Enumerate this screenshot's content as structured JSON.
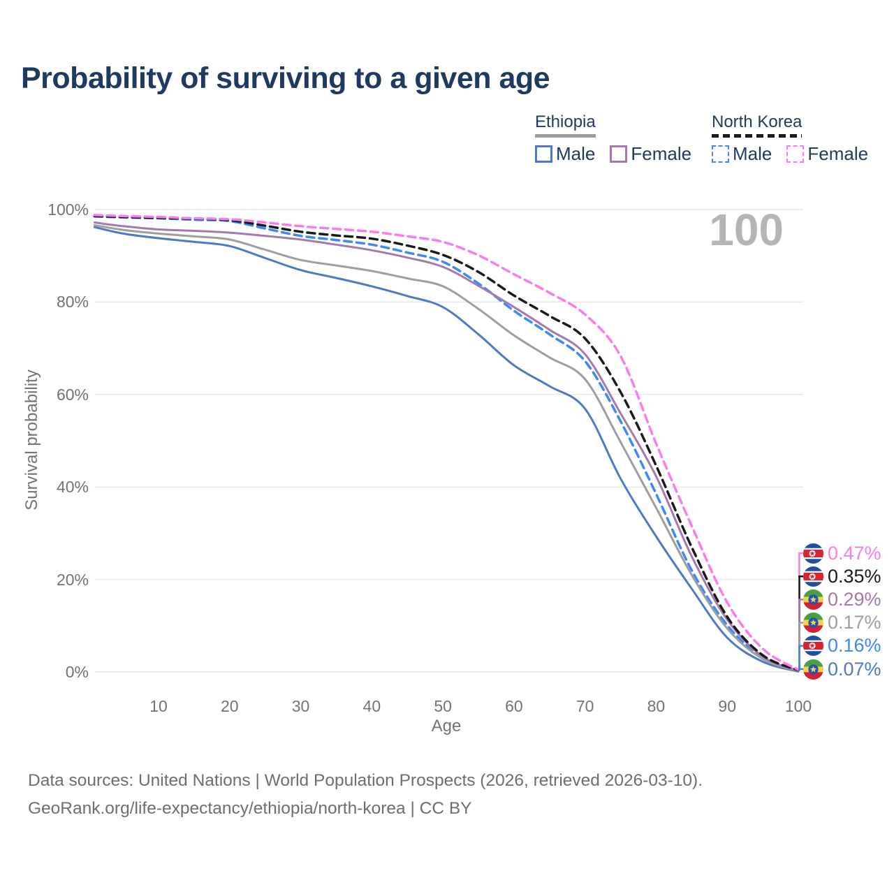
{
  "title": "Probability of surviving to a given age",
  "watermark_age": "100",
  "axes": {
    "ylabel": "Survival probability",
    "xlabel": "Age",
    "yticks": [
      {
        "value": 0,
        "label": "0%"
      },
      {
        "value": 20,
        "label": "20%"
      },
      {
        "value": 40,
        "label": "40%"
      },
      {
        "value": 60,
        "label": "60%"
      },
      {
        "value": 80,
        "label": "80%"
      },
      {
        "value": 100,
        "label": "100%"
      }
    ],
    "xticks": [
      {
        "value": 10,
        "label": "10"
      },
      {
        "value": 20,
        "label": "20"
      },
      {
        "value": 30,
        "label": "30"
      },
      {
        "value": 40,
        "label": "40"
      },
      {
        "value": 50,
        "label": "50"
      },
      {
        "value": 60,
        "label": "60"
      },
      {
        "value": 70,
        "label": "70"
      },
      {
        "value": 80,
        "label": "80"
      },
      {
        "value": 90,
        "label": "90"
      },
      {
        "value": 100,
        "label": "100"
      }
    ]
  },
  "legend": {
    "groups": [
      {
        "title": "Ethiopia",
        "line_style": "solid",
        "line_color": "#9e9e9e",
        "items": [
          {
            "label": "Male",
            "color": "#4d79c7",
            "dashed": false
          },
          {
            "label": "Female",
            "color": "#a678b0",
            "dashed": false
          }
        ]
      },
      {
        "title": "North Korea",
        "line_style": "dashed",
        "line_color": "#1a1a1a",
        "items": [
          {
            "label": "Male",
            "color": "#3d8af7",
            "dashed": true
          },
          {
            "label": "Female",
            "color": "#fb7ce8",
            "dashed": true
          }
        ]
      }
    ]
  },
  "chart_data": {
    "type": "line",
    "title": "Probability of surviving to a given age",
    "xlabel": "Age",
    "ylabel": "Survival probability",
    "xlim": [
      1,
      100
    ],
    "ylim": [
      0,
      100
    ],
    "grid": "horizontal",
    "legend_position": "top-right",
    "x": [
      1,
      5,
      10,
      15,
      20,
      25,
      30,
      35,
      40,
      45,
      50,
      55,
      60,
      65,
      70,
      75,
      80,
      85,
      90,
      95,
      100
    ],
    "series": [
      {
        "name": "North Korea Female",
        "country": "north-korea",
        "color": "#fb7ce8",
        "dash": true,
        "end_label": "0.47%",
        "values": [
          98.8,
          98.6,
          98.4,
          98.1,
          97.9,
          97.2,
          96.4,
          95.8,
          95.2,
          94.2,
          93.0,
          90.1,
          86.0,
          82.0,
          77.3,
          68.3,
          49.4,
          31.6,
          15.0,
          5.0,
          0.47
        ]
      },
      {
        "name": "North Korea Both sexes",
        "country": "north-korea",
        "color": "#1a1a1a",
        "dash": true,
        "end_label": "0.35%",
        "values": [
          98.6,
          98.4,
          98.2,
          98.0,
          97.7,
          96.5,
          95.2,
          94.4,
          93.7,
          92.2,
          90.2,
          86.5,
          81.4,
          77.0,
          72.1,
          60.5,
          44.6,
          27.0,
          11.9,
          3.6,
          0.35
        ]
      },
      {
        "name": "Ethiopia Female",
        "country": "ethiopia",
        "color": "#a678b0",
        "dash": false,
        "end_label": "0.29%",
        "values": [
          97.2,
          96.4,
          95.7,
          95.4,
          95.0,
          94.3,
          93.5,
          92.4,
          91.2,
          89.6,
          87.6,
          83.5,
          78.9,
          74.0,
          68.7,
          55.9,
          42.3,
          25.0,
          11.3,
          3.3,
          0.29
        ]
      },
      {
        "name": "Ethiopia Both sexes",
        "country": "ethiopia",
        "color": "#9e9e9e",
        "dash": false,
        "end_label": "0.17%",
        "values": [
          96.6,
          95.6,
          94.8,
          94.2,
          93.5,
          91.3,
          89.1,
          87.9,
          86.7,
          85.1,
          83.4,
          78.5,
          72.8,
          68.0,
          63.3,
          49.7,
          35.5,
          21.0,
          9.4,
          2.8,
          0.17
        ]
      },
      {
        "name": "North Korea Male",
        "country": "north-korea",
        "color": "#3d8af7",
        "dash": true,
        "end_label": "0.16%",
        "values": [
          98.5,
          98.3,
          98.1,
          97.8,
          97.5,
          95.9,
          94.3,
          93.4,
          92.4,
          90.7,
          88.7,
          84.0,
          78.1,
          73.0,
          67.2,
          54.2,
          38.5,
          22.0,
          10.1,
          3.0,
          0.16
        ]
      },
      {
        "name": "Ethiopia Male",
        "country": "ethiopia",
        "color": "#4d79c7",
        "dash": false,
        "end_label": "0.07%",
        "values": [
          96.2,
          94.8,
          93.8,
          93.0,
          92.1,
          89.5,
          86.9,
          85.2,
          83.4,
          81.3,
          78.9,
          73.0,
          66.3,
          61.8,
          56.9,
          41.8,
          29.3,
          18.0,
          7.4,
          2.2,
          0.07
        ]
      }
    ]
  },
  "footer": {
    "line1": "Data sources: United Nations | World Population Prospects (2026, retrieved 2026-03-10).",
    "line2": "GeoRank.org/life-expectancy/ethiopia/north-korea | CC BY"
  }
}
